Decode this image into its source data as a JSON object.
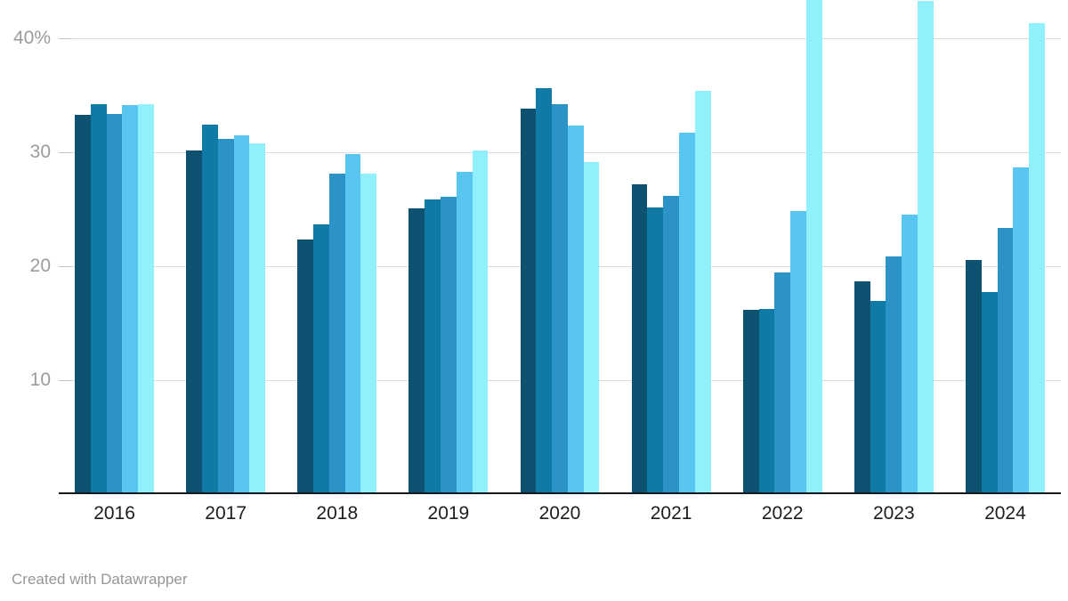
{
  "chart_data": {
    "type": "bar",
    "title": "",
    "xlabel": "",
    "ylabel": "",
    "categories": [
      "2016",
      "2017",
      "2018",
      "2019",
      "2020",
      "2021",
      "2022",
      "2023",
      "2024"
    ],
    "series": [
      {
        "name": "shade-1-darkest-blue",
        "color": "#0d5270",
        "values": [
          33.1,
          30.0,
          22.2,
          24.9,
          33.7,
          27.0,
          16.0,
          18.5,
          20.4
        ]
      },
      {
        "name": "shade-2-dark-blue",
        "color": "#0f7aa6",
        "values": [
          34.1,
          32.3,
          23.5,
          25.7,
          35.5,
          25.0,
          16.1,
          16.8,
          17.6
        ]
      },
      {
        "name": "shade-3-medium-blue",
        "color": "#2b93c6",
        "values": [
          33.2,
          31.0,
          28.0,
          25.9,
          34.1,
          26.0,
          19.3,
          20.7,
          23.2
        ]
      },
      {
        "name": "shade-4-sky-blue",
        "color": "#58c6f1",
        "values": [
          34.0,
          31.3,
          29.7,
          28.1,
          32.2,
          31.6,
          24.7,
          24.4,
          28.5
        ]
      },
      {
        "name": "shade-5-pale-cyan",
        "color": "#90f1fc",
        "values": [
          34.1,
          30.6,
          28.0,
          30.0,
          29.0,
          35.2,
          44.0,
          43.1,
          41.2
        ]
      }
    ],
    "y_ticks": [
      {
        "label": "40%",
        "value": 40
      },
      {
        "label": "30",
        "value": 30
      },
      {
        "label": "20",
        "value": 20
      },
      {
        "label": "10",
        "value": 10
      }
    ],
    "ylim": [
      0,
      43.4
    ],
    "grid": "horizontal-only",
    "legend": "none",
    "clipping_note": "2022 pale-cyan bar extends beyond the top edge of the image (value above 43.4 is cut off)"
  },
  "footer": {
    "credit": "Created with Datawrapper"
  },
  "colors": {
    "background": "#ffffff",
    "axis_line": "#16191c",
    "gridline": "#dcdcdc",
    "tick_label": "#9b9b9b",
    "category_label": "#1d1d1d",
    "credit_text": "#969696"
  }
}
